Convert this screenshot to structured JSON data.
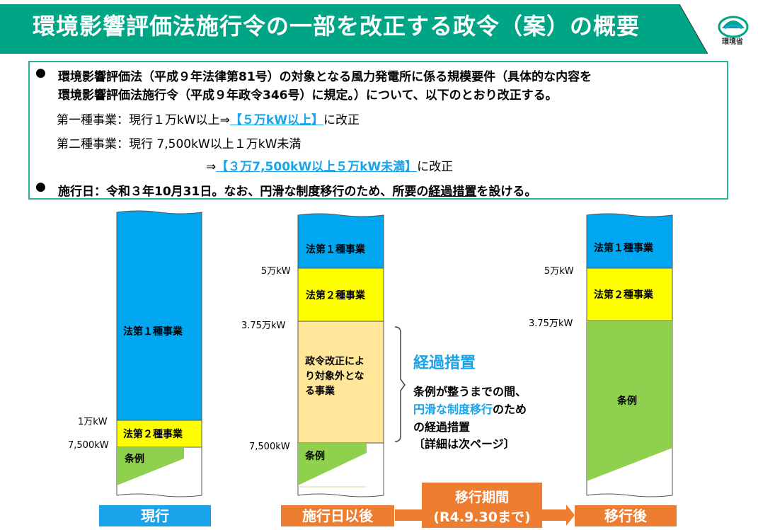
{
  "header": {
    "title": "環境影響評価法施行令の一部を改正する政令（案）の概要",
    "logo_text": "環境省",
    "colors": {
      "title_bg": "#00a586",
      "accent_blue": "#1aa3e8"
    }
  },
  "summary": {
    "line1": "環境影響評価法（平成９年法律第81号）の対象となる風力発電所に係る規模要件（具体的な内容を",
    "line2": "環境影響評価法施行令（平成９年政令346号）に規定。）について、以下のとおり改正する。",
    "type1_prefix": "第一種事業：現行１万kW以上⇒",
    "type1_new": "【５万kW以上】",
    "type1_suffix": "に改正",
    "type2_prefix": "第二種事業：現行 7,500kW以上１万kW未満",
    "type2_arrow": "⇒",
    "type2_new": "【３万7,500kW以上５万kW未満】",
    "type2_suffix": "に改正",
    "date_prefix": "施行日：令和３年10月31日。なお、円滑な制度移行のため、所要の",
    "date_em": "経過措置",
    "date_suffix": "を設ける。"
  },
  "columns": {
    "current": {
      "tag": "現行",
      "seg_type1": "法第１種事業",
      "seg_type2": "法第２種事業",
      "seg_ordinance": "条例",
      "label_10k": "1万kW",
      "label_7500": "7,500kW"
    },
    "after": {
      "tag": "施行日以後",
      "seg_type1": "法第１種事業",
      "seg_type2": "法第２種事業",
      "seg_excluded_l1": "政令改正によ",
      "seg_excluded_l2": "り対象外とな",
      "seg_excluded_l3": "る事業",
      "seg_ordinance": "条例",
      "label_50k": "5万kW",
      "label_37k": "3.75万kW",
      "label_7500": "7,500kW"
    },
    "transition_final": {
      "tag": "移行後",
      "seg_type1": "法第１種事業",
      "seg_type2": "法第２種事業",
      "seg_ordinance": "条例",
      "label_50k": "5万kW",
      "label_37k": "3.75万kW"
    }
  },
  "transition": {
    "title": "経過措置",
    "line1": "条例が整うまでの間、",
    "line2_em": "円滑な制度移行",
    "line2_suffix": "のため",
    "line3": "の経過措置",
    "line4": "〔詳細は次ページ〕",
    "period_label": "移行期間",
    "period_date": "(R4.9.30まで)"
  }
}
